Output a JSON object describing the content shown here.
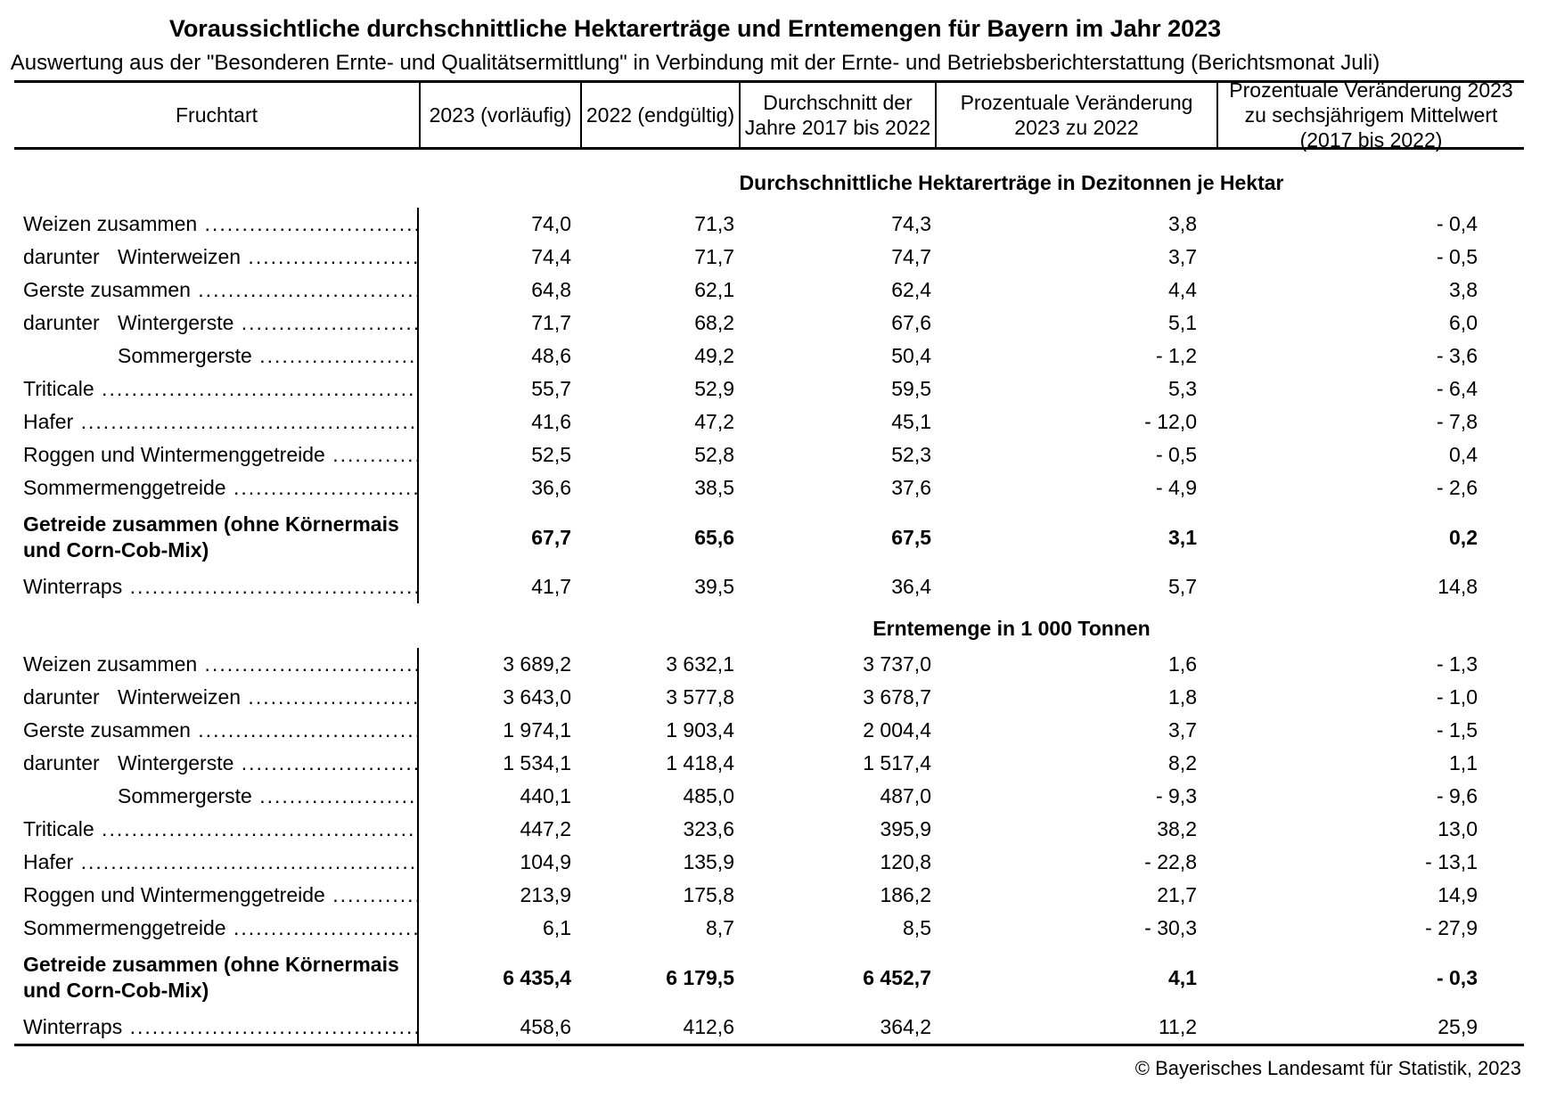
{
  "title": "Voraussichtliche durchschnittliche Hektarerträge und Erntemengen für Bayern im Jahr 2023",
  "subtitle": "Auswertung aus der \"Besonderen Ernte- und Qualitätsermittlung\" in Verbindung mit der Ernte- und Betriebsberichterstattung (Berichtsmonat Juli)",
  "columns": [
    "Fruchtart",
    "2023 (vorläufig)",
    "2022 (endgültig)",
    "Durchschnitt der Jahre 2017 bis 2022",
    "Prozentuale Veränderung 2023 zu 2022",
    "Prozentuale Veränderung 2023 zu sechsjährigem Mittelwert (2017 bis 2022)"
  ],
  "colors": {
    "text": "#000000",
    "background": "#ffffff",
    "rule": "#000000"
  },
  "sections": [
    {
      "heading": "Durchschnittliche Hektarerträge in Dezitonnen je Hektar",
      "rows": [
        {
          "label": "Weizen zusammen",
          "values": [
            "74,0",
            "71,3",
            "74,3",
            "3,8",
            "- 0,4"
          ]
        },
        {
          "prefix": "darunter",
          "label": "Winterweizen",
          "indent": true,
          "values": [
            "74,4",
            "71,7",
            "74,7",
            "3,7",
            "- 0,5"
          ]
        },
        {
          "label": "Gerste zusammen",
          "values": [
            "64,8",
            "62,1",
            "62,4",
            "4,4",
            "3,8"
          ]
        },
        {
          "prefix": "darunter",
          "label": "Wintergerste",
          "indent": true,
          "values": [
            "71,7",
            "68,2",
            "67,6",
            "5,1",
            "6,0"
          ]
        },
        {
          "prefix": "",
          "label": "Sommergerste",
          "indent": true,
          "values": [
            "48,6",
            "49,2",
            "50,4",
            "- 1,2",
            "- 3,6"
          ]
        },
        {
          "label": "Triticale",
          "values": [
            "55,7",
            "52,9",
            "59,5",
            "5,3",
            "- 6,4"
          ]
        },
        {
          "label": "Hafer",
          "values": [
            "41,6",
            "47,2",
            "45,1",
            "- 12,0",
            "- 7,8"
          ]
        },
        {
          "label": "Roggen und Wintermenggetreide",
          "values": [
            "52,5",
            "52,8",
            "52,3",
            "- 0,5",
            "0,4"
          ]
        },
        {
          "label": "Sommermenggetreide",
          "values": [
            "36,6",
            "38,5",
            "37,6",
            "- 4,9",
            "- 2,6"
          ]
        },
        {
          "label": "Getreide zusammen (ohne Körnermais und Corn-Cob-Mix)",
          "label_lines": [
            "Getreide zusammen (ohne Körnermais",
            "und Corn-Cob-Mix)"
          ],
          "bold": true,
          "values": [
            "67,7",
            "65,6",
            "67,5",
            "3,1",
            "0,2"
          ]
        },
        {
          "label": "Winterraps",
          "values": [
            "41,7",
            "39,5",
            "36,4",
            "5,7",
            "14,8"
          ]
        }
      ]
    },
    {
      "heading": "Erntemenge in 1 000 Tonnen",
      "rows": [
        {
          "label": "Weizen zusammen",
          "values": [
            "3 689,2",
            "3 632,1",
            "3 737,0",
            "1,6",
            "- 1,3"
          ]
        },
        {
          "prefix": "darunter",
          "label": "Winterweizen",
          "indent": true,
          "values": [
            "3 643,0",
            "3 577,8",
            "3 678,7",
            "1,8",
            "- 1,0"
          ]
        },
        {
          "label": "Gerste zusammen",
          "values": [
            "1 974,1",
            "1 903,4",
            "2 004,4",
            "3,7",
            "- 1,5"
          ]
        },
        {
          "prefix": "darunter",
          "label": "Wintergerste",
          "indent": true,
          "values": [
            "1 534,1",
            "1 418,4",
            "1 517,4",
            "8,2",
            "1,1"
          ]
        },
        {
          "prefix": "",
          "label": "Sommergerste",
          "indent": true,
          "values": [
            "440,1",
            "485,0",
            "487,0",
            "- 9,3",
            "- 9,6"
          ]
        },
        {
          "label": "Triticale",
          "values": [
            "447,2",
            "323,6",
            "395,9",
            "38,2",
            "13,0"
          ]
        },
        {
          "label": "Hafer",
          "values": [
            "104,9",
            "135,9",
            "120,8",
            "- 22,8",
            "- 13,1"
          ]
        },
        {
          "label": "Roggen und Wintermenggetreide",
          "values": [
            "213,9",
            "175,8",
            "186,2",
            "21,7",
            "14,9"
          ]
        },
        {
          "label": "Sommermenggetreide",
          "values": [
            "6,1",
            "8,7",
            "8,5",
            "- 30,3",
            "- 27,9"
          ]
        },
        {
          "label": "Getreide zusammen (ohne Körnermais und Corn-Cob-Mix)",
          "label_lines": [
            "Getreide zusammen (ohne Körnermais",
            "und Corn-Cob-Mix)"
          ],
          "bold": true,
          "values": [
            "6 435,4",
            "6 179,5",
            "6 452,7",
            "4,1",
            "- 0,3"
          ]
        },
        {
          "label": "Winterraps",
          "values": [
            "458,6",
            "412,6",
            "364,2",
            "11,2",
            "25,9"
          ]
        }
      ]
    }
  ],
  "footer": "© Bayerisches Landesamt für Statistik, 2023"
}
